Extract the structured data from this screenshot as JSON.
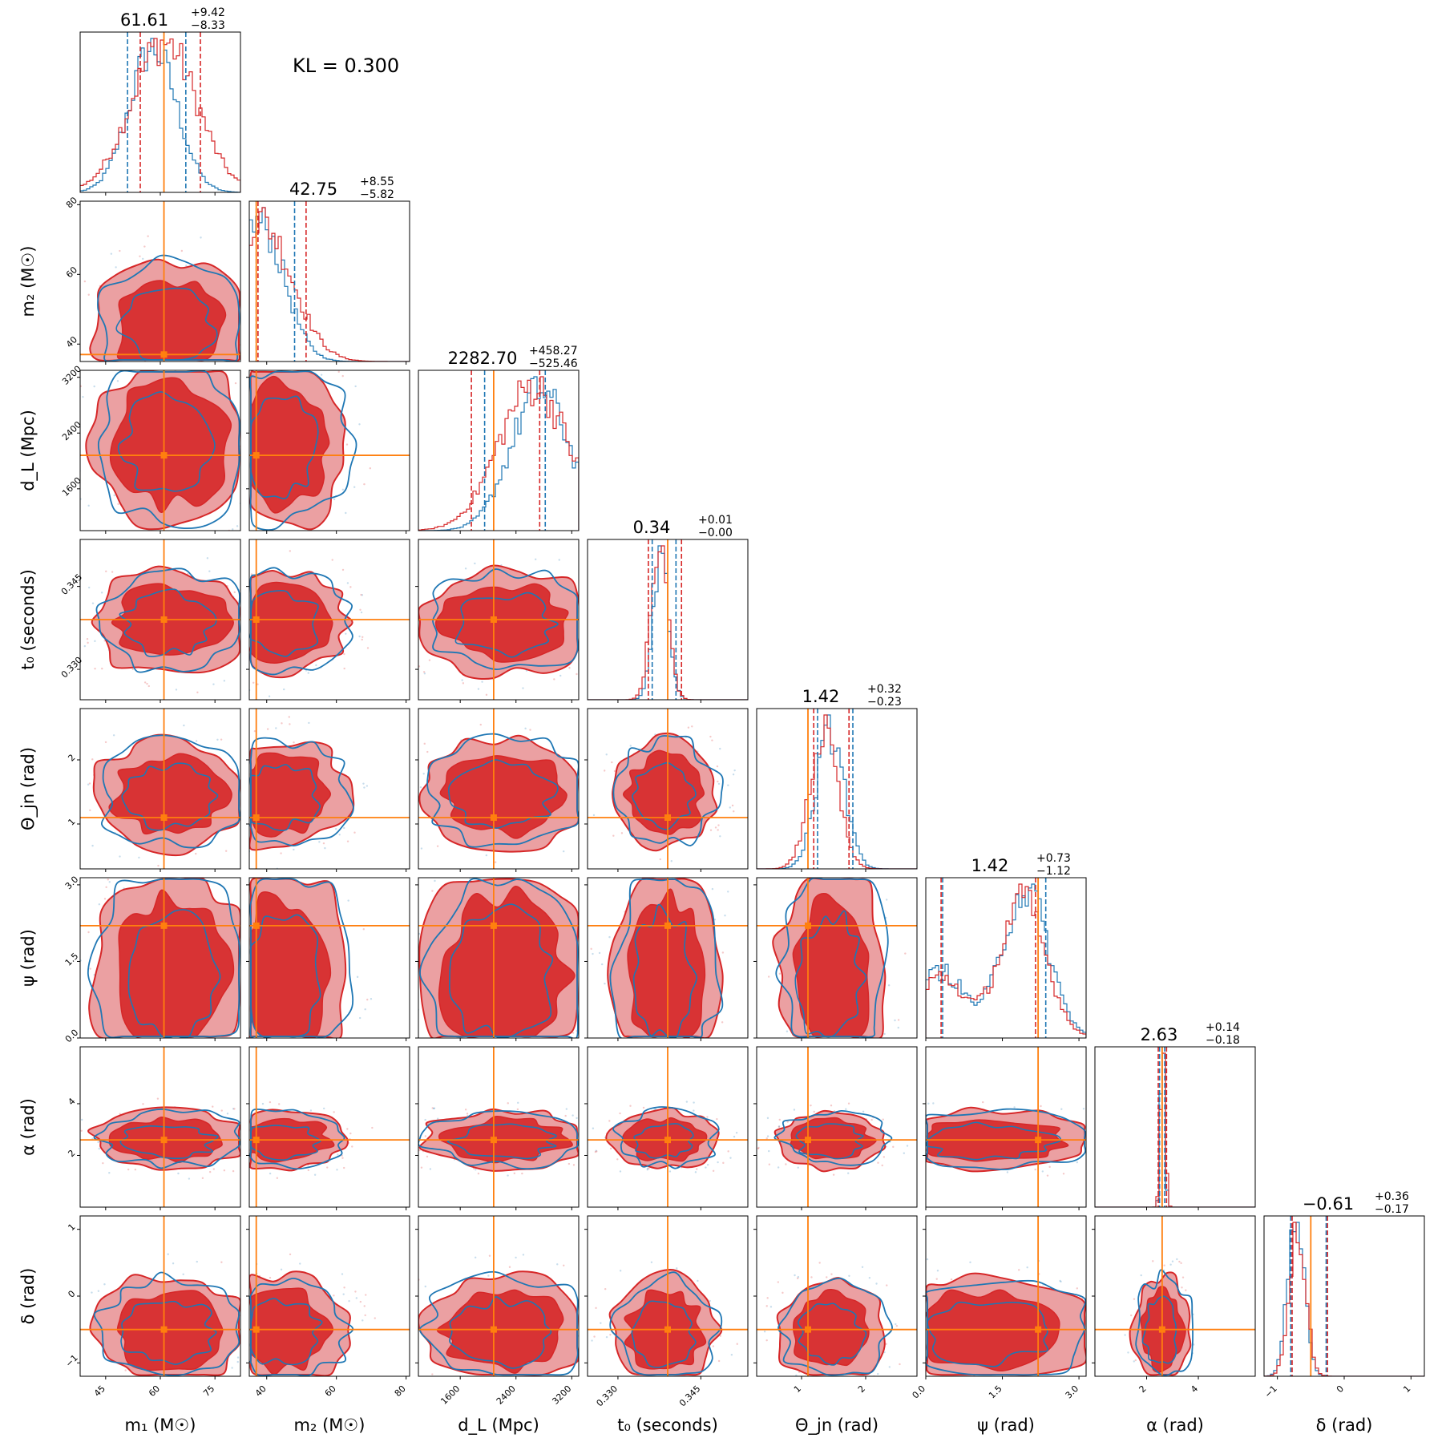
{
  "chart_data": {
    "type": "corner",
    "annotation": "KL = 0.300",
    "colors": {
      "blue": "#1f77b4",
      "red": "#d62728",
      "orange": "#ff7f0e"
    },
    "params": [
      {
        "label": "m₁ (M☉)",
        "sym": "m",
        "sub": "1",
        "unit": "(M☉)",
        "range": [
          38,
          82
        ],
        "ticks": [
          45,
          60,
          75
        ],
        "tick_labels": [
          "45",
          "60",
          "75"
        ],
        "truth": 61,
        "median": 61.61,
        "plus": "+9.42",
        "minus": "−8.33",
        "title_main": "61.61",
        "red_q": [
          54.5,
          71
        ],
        "blue_q": [
          51,
          67
        ],
        "red_peak": 61,
        "red_w": 9,
        "blue_peak": 58,
        "blue_w": 6.5
      },
      {
        "label": "m₂ (M☉)",
        "sym": "m",
        "sub": "2",
        "unit": "(M☉)",
        "range": [
          35,
          81
        ],
        "ticks": [
          40,
          60,
          80
        ],
        "tick_labels": [
          "40",
          "60",
          "80"
        ],
        "truth": 37,
        "median": 42.75,
        "plus": "+8.55",
        "minus": "−5.82",
        "title_main": "42.75",
        "red_q": [
          37.5,
          51.3
        ],
        "blue_q": [
          37,
          48
        ],
        "red_peak": 38,
        "red_w": 9,
        "blue_peak": 38,
        "blue_w": 7
      },
      {
        "label": "d_L (Mpc)",
        "sym": "d",
        "sub": "L",
        "unit": "(Mpc)",
        "range": [
          1000,
          3300
        ],
        "ticks": [
          1600,
          2400,
          3200
        ],
        "tick_labels": [
          "1600",
          "2400",
          "3200"
        ],
        "truth": 2080,
        "median": 2282.7,
        "plus": "+458.27",
        "minus": "−525.46",
        "title_main": "2282.70",
        "red_q": [
          1760,
          2740
        ],
        "blue_q": [
          1950,
          2820
        ],
        "red_peak": 2650,
        "red_w": 500,
        "blue_peak": 2750,
        "blue_w": 420
      },
      {
        "label": "t₀ (seconds)",
        "sym": "t",
        "sub": "0",
        "unit": "(seconds)",
        "range": [
          0.3245,
          0.3535
        ],
        "ticks": [
          0.33,
          0.345
        ],
        "tick_labels": [
          "0.330",
          "0.345"
        ],
        "truth": 0.339,
        "median": 0.34,
        "plus": "+0.01",
        "minus": "−0.00",
        "title_main": "0.34",
        "red_q": [
          0.3355,
          0.3415
        ],
        "blue_q": [
          0.3362,
          0.3405
        ],
        "red_peak": 0.3375,
        "red_w": 0.0015,
        "blue_peak": 0.3378,
        "blue_w": 0.0014
      },
      {
        "label": "Θ_jn (rad)",
        "sym": "Θ",
        "sub": "jn",
        "unit": "(rad)",
        "range": [
          0.3,
          2.8
        ],
        "ticks": [
          1,
          2
        ],
        "tick_labels": [
          "1",
          "2"
        ],
        "truth": 1.1,
        "median": 1.42,
        "plus": "+0.32",
        "minus": "−0.23",
        "title_main": "1.42",
        "red_q": [
          1.19,
          1.74
        ],
        "blue_q": [
          1.25,
          1.8
        ],
        "red_peak": 1.35,
        "red_w": 0.22,
        "blue_peak": 1.45,
        "blue_w": 0.22
      },
      {
        "label": "ψ (rad)",
        "sym": "ψ",
        "sub": "",
        "unit": "(rad)",
        "range": [
          0,
          3.14
        ],
        "ticks": [
          0,
          1.5,
          3
        ],
        "tick_labels": [
          "0.0",
          "1.5",
          "3.0"
        ],
        "truth": 2.2,
        "median": 1.42,
        "plus": "+0.73",
        "minus": "−1.12",
        "title_main": "1.42",
        "red_q": [
          0.3,
          2.15
        ],
        "blue_q": [
          0.33,
          2.35
        ],
        "red_peak": 1.9,
        "red_w": 0.45,
        "blue_peak": 1.95,
        "blue_w": 0.45
      },
      {
        "label": "α (rad)",
        "sym": "α",
        "sub": "",
        "unit": "(rad)",
        "range": [
          0,
          6.2
        ],
        "ticks": [
          2,
          4
        ],
        "tick_labels": [
          "2",
          "4"
        ],
        "truth": 2.6,
        "median": 2.63,
        "plus": "+0.14",
        "minus": "−0.18",
        "title_main": "2.63",
        "red_q": [
          2.45,
          2.77
        ],
        "blue_q": [
          2.5,
          2.7
        ],
        "red_peak": 2.63,
        "red_w": 0.09,
        "blue_peak": 2.62,
        "blue_w": 0.08
      },
      {
        "label": "δ (rad)",
        "sym": "δ",
        "sub": "",
        "unit": "(rad)",
        "range": [
          -1.2,
          1.2
        ],
        "ticks": [
          -1,
          0,
          1
        ],
        "tick_labels": [
          "−1",
          "0",
          "1"
        ],
        "truth": -0.5,
        "median": -0.61,
        "plus": "+0.36",
        "minus": "−0.17",
        "title_main": "−0.61",
        "red_q": [
          -0.78,
          -0.25
        ],
        "blue_q": [
          -0.8,
          -0.27
        ],
        "red_peak": -0.7,
        "red_w": 0.12,
        "blue_peak": -0.72,
        "blue_w": 0.12
      }
    ],
    "grid": "off",
    "legend": "none"
  }
}
